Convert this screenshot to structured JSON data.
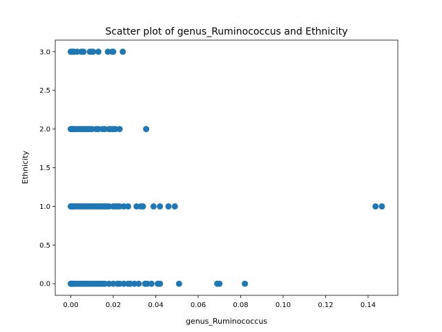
{
  "chart_data": {
    "type": "scatter",
    "title": "Scatter plot of genus_Ruminococcus and Ethnicity",
    "xlabel": "genus_Ruminococcus",
    "ylabel": "Ethnicity",
    "xlim": [
      -0.0073,
      0.154
    ],
    "ylim": [
      -0.15,
      3.15
    ],
    "xticks": [
      0.0,
      0.02,
      0.04,
      0.06,
      0.08,
      0.1,
      0.12,
      0.14
    ],
    "xtick_labels": [
      "0.00",
      "0.02",
      "0.04",
      "0.06",
      "0.08",
      "0.10",
      "0.12",
      "0.14"
    ],
    "yticks": [
      0.0,
      0.5,
      1.0,
      1.5,
      2.0,
      2.5,
      3.0
    ],
    "ytick_labels": [
      "0.0",
      "0.5",
      "1.0",
      "1.5",
      "2.0",
      "2.5",
      "3.0"
    ],
    "grid": false,
    "color": "#1f77b4",
    "series": [
      {
        "x": [
          0.0,
          0.0003,
          0.0006,
          0.001,
          0.0015,
          0.002,
          0.003,
          0.004,
          0.005,
          0.006,
          0.007,
          0.008,
          0.009,
          0.01,
          0.011,
          0.012,
          0.013,
          0.014,
          0.015,
          0.016,
          0.018,
          0.02,
          0.022,
          0.023,
          0.025,
          0.027,
          0.028,
          0.03,
          0.032,
          0.035,
          0.036,
          0.038,
          0.041,
          0.042,
          0.051,
          0.069,
          0.07,
          0.082,
          0.0,
          0.0004,
          0.0008,
          0.0012,
          0.002,
          0.003,
          0.004,
          0.005,
          0.006,
          0.007,
          0.008,
          0.009,
          0.01,
          0.011,
          0.012,
          0.013,
          0.014,
          0.015,
          0.016,
          0.017,
          0.018,
          0.02,
          0.021,
          0.022,
          0.023,
          0.025,
          0.027,
          0.031,
          0.033,
          0.034,
          0.039,
          0.042,
          0.046,
          0.049,
          0.1435,
          0.1465,
          0.0,
          0.0005,
          0.001,
          0.0015,
          0.002,
          0.003,
          0.004,
          0.005,
          0.006,
          0.007,
          0.008,
          0.009,
          0.01,
          0.012,
          0.013,
          0.015,
          0.016,
          0.018,
          0.019,
          0.02,
          0.021,
          0.023,
          0.0355,
          0.0,
          0.0005,
          0.001,
          0.0015,
          0.003,
          0.005,
          0.006,
          0.009,
          0.01,
          0.0105,
          0.013,
          0.0175,
          0.0195,
          0.02,
          0.0245
        ],
        "y": [
          0,
          0,
          0,
          0,
          0,
          0,
          0,
          0,
          0,
          0,
          0,
          0,
          0,
          0,
          0,
          0,
          0,
          0,
          0,
          0,
          0,
          0,
          0,
          0,
          0,
          0,
          0,
          0,
          0,
          0,
          0,
          0,
          0,
          0,
          0,
          0,
          0,
          0,
          1,
          1,
          1,
          1,
          1,
          1,
          1,
          1,
          1,
          1,
          1,
          1,
          1,
          1,
          1,
          1,
          1,
          1,
          1,
          1,
          1,
          1,
          1,
          1,
          1,
          1,
          1,
          1,
          1,
          1,
          1,
          1,
          1,
          1,
          1,
          1,
          2,
          2,
          2,
          2,
          2,
          2,
          2,
          2,
          2,
          2,
          2,
          2,
          2,
          2,
          2,
          2,
          2,
          2,
          2,
          2,
          2,
          2,
          2,
          3,
          3,
          3,
          3,
          3,
          3,
          3,
          3,
          3,
          3,
          3,
          3,
          3,
          3,
          3
        ]
      }
    ]
  }
}
